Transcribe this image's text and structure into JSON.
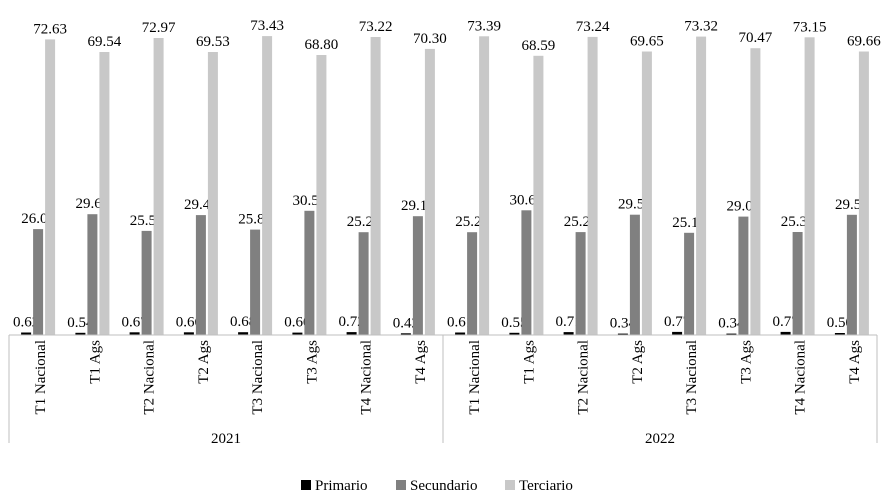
{
  "chart_data": {
    "type": "bar",
    "categories": [
      "T1 Nacional",
      "T1 Ags",
      "T2 Nacional",
      "T2 Ags",
      "T3 Nacional",
      "T3 Ags",
      "T4 Nacional",
      "T4 Ags",
      "T1 Nacional",
      "T1 Ags",
      "T2 Nacional",
      "T2 Ags",
      "T3 Nacional",
      "T3 Ags",
      "T4 Nacional",
      "T4 Ags"
    ],
    "groups": [
      {
        "label": "2021",
        "count": 8
      },
      {
        "label": "2022",
        "count": 8
      }
    ],
    "series": [
      {
        "name": "Primario",
        "color": "#000000",
        "values": [
          0.62,
          0.54,
          0.67,
          0.66,
          0.68,
          0.6,
          0.72,
          0.42,
          0.61,
          0.55,
          0.71,
          0.34,
          0.77,
          0.34,
          0.77,
          0.5
        ]
      },
      {
        "name": "Secundario",
        "color": "#808080",
        "values": [
          26.01,
          29.68,
          25.58,
          29.47,
          25.89,
          30.51,
          25.25,
          29.19,
          25.25,
          30.63,
          25.29,
          29.56,
          25.12,
          29.09,
          25.3,
          29.53
        ]
      },
      {
        "name": "Terciario",
        "color": "#c8c8c8",
        "values": [
          72.63,
          69.54,
          72.97,
          69.53,
          73.43,
          68.8,
          73.22,
          70.3,
          73.39,
          68.59,
          73.24,
          69.65,
          73.32,
          70.47,
          73.15,
          69.66
        ]
      }
    ],
    "data_labels": [
      [
        "0.62",
        "0.54",
        "0.67",
        "0.66",
        "0.68",
        "0.60",
        "0.72",
        "0.42",
        "0.61",
        "0.55",
        "0.71",
        "0.34",
        "0.77",
        "0.34",
        "0.77",
        "0.50"
      ],
      [
        "26.01",
        "29.68",
        "25.58",
        "29.47",
        "25.89",
        "30.51",
        "25.25",
        "29.19",
        "25.25",
        "30.63",
        "25.29",
        "29.56",
        "25.12",
        "29.09",
        "25.30",
        "29.53"
      ],
      [
        "72.63",
        "69.54",
        "72.97",
        "69.53",
        "73.43",
        "68.80",
        "73.22",
        "70.30",
        "73.39",
        "68.59",
        "73.24",
        "69.65",
        "73.32",
        "70.47",
        "73.15",
        "69.66"
      ]
    ],
    "ylim": [
      0,
      75
    ],
    "grid": false,
    "legend_position": "bottom"
  }
}
